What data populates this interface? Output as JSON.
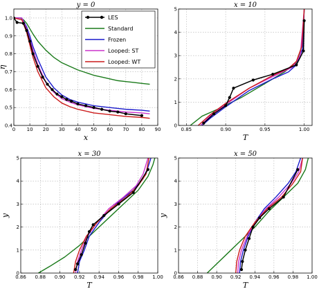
{
  "chart_data": [
    {
      "type": "line",
      "title": "y = 0",
      "xlabel": "x",
      "ylabel": "η",
      "xlim": [
        0,
        90
      ],
      "ylim": [
        0.4,
        1.05
      ],
      "xticks": [
        "0",
        "10",
        "20",
        "30",
        "40",
        "50",
        "60",
        "70",
        "80",
        "90"
      ],
      "yticks": [
        "0.4",
        "0.5",
        "0.6",
        "0.7",
        "0.8",
        "0.9",
        "1.0"
      ],
      "xtick_values": [
        0,
        10,
        20,
        30,
        40,
        50,
        60,
        70,
        80,
        90
      ],
      "ytick_values": [
        0.4,
        0.5,
        0.6,
        0.7,
        0.8,
        0.9,
        1.0
      ],
      "legend": {
        "position": "top-right"
      },
      "series": [
        {
          "name": "Standard",
          "color": "#1a7a1a",
          "x": [
            0,
            4,
            6,
            8,
            10,
            12,
            15,
            20,
            25,
            30,
            35,
            40,
            45,
            50,
            55,
            60,
            65,
            70,
            75,
            80,
            85
          ],
          "y": [
            1.0,
            1.0,
            0.99,
            0.97,
            0.94,
            0.91,
            0.87,
            0.82,
            0.78,
            0.75,
            0.73,
            0.71,
            0.695,
            0.68,
            0.67,
            0.66,
            0.65,
            0.645,
            0.64,
            0.635,
            0.63
          ]
        },
        {
          "name": "Frozen",
          "color": "#1a1acc",
          "x": [
            0,
            5,
            8,
            10,
            12,
            15,
            20,
            25,
            30,
            35,
            40,
            50,
            60,
            70,
            80,
            85
          ],
          "y": [
            1.0,
            1.0,
            0.95,
            0.9,
            0.84,
            0.77,
            0.67,
            0.61,
            0.57,
            0.545,
            0.53,
            0.51,
            0.5,
            0.49,
            0.485,
            0.48
          ]
        },
        {
          "name": "Looped: ST",
          "color": "#cc33cc",
          "x": [
            0,
            5,
            8,
            10,
            12,
            15,
            20,
            25,
            30,
            35,
            40,
            50,
            60,
            70,
            80,
            85
          ],
          "y": [
            1.0,
            1.0,
            0.94,
            0.88,
            0.82,
            0.74,
            0.64,
            0.585,
            0.55,
            0.53,
            0.515,
            0.495,
            0.485,
            0.475,
            0.47,
            0.465
          ]
        },
        {
          "name": "Looped: WT",
          "color": "#cc1a1a",
          "x": [
            0,
            5,
            8,
            10,
            12,
            15,
            20,
            25,
            30,
            35,
            40,
            50,
            60,
            70,
            80,
            85
          ],
          "y": [
            1.0,
            0.99,
            0.92,
            0.85,
            0.78,
            0.7,
            0.61,
            0.56,
            0.525,
            0.505,
            0.49,
            0.47,
            0.46,
            0.45,
            0.445,
            0.44
          ]
        },
        {
          "name": "LES",
          "color": "#000000",
          "marker": true,
          "x": [
            0,
            2,
            6,
            8,
            10,
            12,
            15,
            18,
            21,
            24,
            27,
            30,
            33,
            36,
            40,
            45,
            50,
            55,
            60,
            65,
            70,
            80
          ],
          "y": [
            1.0,
            0.975,
            0.97,
            0.93,
            0.87,
            0.8,
            0.73,
            0.67,
            0.63,
            0.6,
            0.575,
            0.56,
            0.545,
            0.535,
            0.52,
            0.51,
            0.5,
            0.49,
            0.48,
            0.475,
            0.465,
            0.455
          ]
        }
      ]
    },
    {
      "type": "line",
      "title": "x = 10",
      "xlabel": "T",
      "ylabel": "",
      "xlim": [
        0.84,
        1.01
      ],
      "ylim": [
        0,
        5
      ],
      "xticks": [
        "0.85",
        "0.90",
        "0.95",
        "1.00"
      ],
      "yticks": [
        "0",
        "1",
        "2",
        "3",
        "4",
        "5"
      ],
      "xtick_values": [
        0.85,
        0.9,
        0.95,
        1.0
      ],
      "ytick_values": [
        0,
        1,
        2,
        3,
        4,
        5
      ],
      "series": [
        {
          "name": "Standard",
          "color": "#1a7a1a",
          "x": [
            0.855,
            0.87,
            0.89,
            0.92,
            0.95,
            0.975,
            0.99,
            0.998,
            1.0
          ],
          "y": [
            0,
            0.4,
            0.7,
            1.2,
            1.8,
            2.3,
            2.7,
            3.5,
            5.0
          ]
        },
        {
          "name": "Frozen",
          "color": "#1a1acc",
          "x": [
            0.87,
            0.88,
            0.9,
            0.93,
            0.96,
            0.98,
            0.99,
            0.998,
            1.0
          ],
          "y": [
            0,
            0.3,
            0.8,
            1.5,
            2.0,
            2.3,
            2.6,
            3.3,
            5.0
          ]
        },
        {
          "name": "Looped: ST",
          "color": "#cc33cc",
          "x": [
            0.868,
            0.88,
            0.9,
            0.93,
            0.96,
            0.985,
            0.995,
            1.0
          ],
          "y": [
            0,
            0.4,
            0.9,
            1.6,
            2.1,
            2.5,
            3.0,
            5.0
          ]
        },
        {
          "name": "Looped: WT",
          "color": "#cc1a1a",
          "x": [
            0.865,
            0.88,
            0.9,
            0.93,
            0.96,
            0.98,
            0.99,
            0.997,
            1.0
          ],
          "y": [
            0,
            0.45,
            0.95,
            1.6,
            2.15,
            2.45,
            2.75,
            3.4,
            5.0
          ]
        },
        {
          "name": "LES",
          "color": "#000000",
          "marker": true,
          "x": [
            0.872,
            0.885,
            0.9,
            0.905,
            0.91,
            0.935,
            0.96,
            0.99,
            0.999,
            1.0
          ],
          "y": [
            0.1,
            0.5,
            0.85,
            1.2,
            1.6,
            1.95,
            2.2,
            2.6,
            3.2,
            4.5
          ]
        }
      ]
    },
    {
      "type": "line",
      "title": "x = 30",
      "xlabel": "T",
      "ylabel": "y",
      "xlim": [
        0.86,
        1.0
      ],
      "ylim": [
        0,
        5
      ],
      "xticks": [
        "0.86",
        "0.88",
        "0.90",
        "0.92",
        "0.94",
        "0.96",
        "0.98",
        "1.00"
      ],
      "yticks": [
        "0",
        "1",
        "2",
        "3",
        "4",
        "5"
      ],
      "xtick_values": [
        0.86,
        0.88,
        0.9,
        0.92,
        0.94,
        0.96,
        0.98,
        1.0
      ],
      "ytick_values": [
        0,
        1,
        2,
        3,
        4,
        5
      ],
      "series": [
        {
          "name": "Standard",
          "color": "#1a7a1a",
          "x": [
            0.878,
            0.89,
            0.905,
            0.92,
            0.935,
            0.95,
            0.965,
            0.98,
            0.99,
            0.995,
            0.997
          ],
          "y": [
            0,
            0.3,
            0.7,
            1.2,
            1.8,
            2.4,
            3.0,
            3.6,
            4.2,
            4.7,
            5.0
          ]
        },
        {
          "name": "Frozen",
          "color": "#1a1acc",
          "x": [
            0.918,
            0.92,
            0.925,
            0.93,
            0.94,
            0.95,
            0.96,
            0.975,
            0.985,
            0.99,
            0.993
          ],
          "y": [
            0,
            0.5,
            1.0,
            1.6,
            2.2,
            2.7,
            3.1,
            3.6,
            4.1,
            4.6,
            5.0
          ]
        },
        {
          "name": "Looped: ST",
          "color": "#cc33cc",
          "x": [
            0.916,
            0.918,
            0.922,
            0.928,
            0.938,
            0.95,
            0.965,
            0.978,
            0.985,
            0.99
          ],
          "y": [
            0,
            0.5,
            1.0,
            1.6,
            2.2,
            2.8,
            3.3,
            3.8,
            4.3,
            5.0
          ]
        },
        {
          "name": "Looped: WT",
          "color": "#cc1a1a",
          "x": [
            0.914,
            0.916,
            0.92,
            0.927,
            0.938,
            0.952,
            0.968,
            0.98,
            0.988,
            0.991
          ],
          "y": [
            0,
            0.5,
            1.0,
            1.6,
            2.2,
            2.8,
            3.3,
            3.8,
            4.3,
            5.0
          ]
        },
        {
          "name": "LES",
          "color": "#000000",
          "marker": true,
          "x": [
            0.916,
            0.918,
            0.922,
            0.926,
            0.93,
            0.934,
            0.945,
            0.96,
            0.975,
            0.99
          ],
          "y": [
            0.15,
            0.4,
            0.8,
            1.3,
            1.8,
            2.1,
            2.5,
            3.0,
            3.5,
            4.5
          ]
        }
      ]
    },
    {
      "type": "line",
      "title": "x = 50",
      "xlabel": "T",
      "ylabel": "y",
      "xlim": [
        0.86,
        1.0
      ],
      "ylim": [
        0,
        5
      ],
      "xticks": [
        "0.86",
        "0.88",
        "0.90",
        "0.92",
        "0.94",
        "0.96",
        "0.98",
        "1.00"
      ],
      "yticks": [
        "0",
        "1",
        "2",
        "3",
        "4",
        "5"
      ],
      "xtick_values": [
        0.86,
        0.88,
        0.9,
        0.92,
        0.94,
        0.96,
        0.98,
        1.0
      ],
      "ytick_values": [
        0,
        1,
        2,
        3,
        4,
        5
      ],
      "series": [
        {
          "name": "Standard",
          "color": "#1a7a1a",
          "x": [
            0.89,
            0.9,
            0.91,
            0.925,
            0.94,
            0.955,
            0.97,
            0.985,
            0.993,
            0.996
          ],
          "y": [
            0,
            0.4,
            0.8,
            1.4,
            2.0,
            2.7,
            3.3,
            3.9,
            4.5,
            5.0
          ]
        },
        {
          "name": "Frozen",
          "color": "#1a1acc",
          "x": [
            0.924,
            0.925,
            0.928,
            0.933,
            0.94,
            0.95,
            0.962,
            0.975,
            0.983,
            0.988
          ],
          "y": [
            0,
            0.5,
            1.0,
            1.6,
            2.2,
            2.8,
            3.3,
            3.9,
            4.4,
            5.0
          ]
        },
        {
          "name": "Looped: ST",
          "color": "#cc33cc",
          "x": [
            0.922,
            0.923,
            0.926,
            0.932,
            0.94,
            0.952,
            0.965,
            0.978,
            0.986,
            0.99
          ],
          "y": [
            0,
            0.5,
            1.0,
            1.6,
            2.2,
            2.8,
            3.3,
            3.9,
            4.4,
            5.0
          ]
        },
        {
          "name": "Looped: WT",
          "color": "#cc1a1a",
          "x": [
            0.92,
            0.921,
            0.924,
            0.93,
            0.94,
            0.953,
            0.968,
            0.98,
            0.988,
            0.99
          ],
          "y": [
            0,
            0.5,
            1.0,
            1.6,
            2.2,
            2.8,
            3.3,
            3.9,
            4.4,
            5.0
          ]
        },
        {
          "name": "LES",
          "color": "#000000",
          "marker": true,
          "x": [
            0.926,
            0.927,
            0.93,
            0.934,
            0.938,
            0.945,
            0.955,
            0.97,
            0.985
          ],
          "y": [
            0.15,
            0.5,
            1.0,
            1.5,
            2.0,
            2.4,
            2.8,
            3.3,
            4.5
          ]
        }
      ]
    }
  ]
}
